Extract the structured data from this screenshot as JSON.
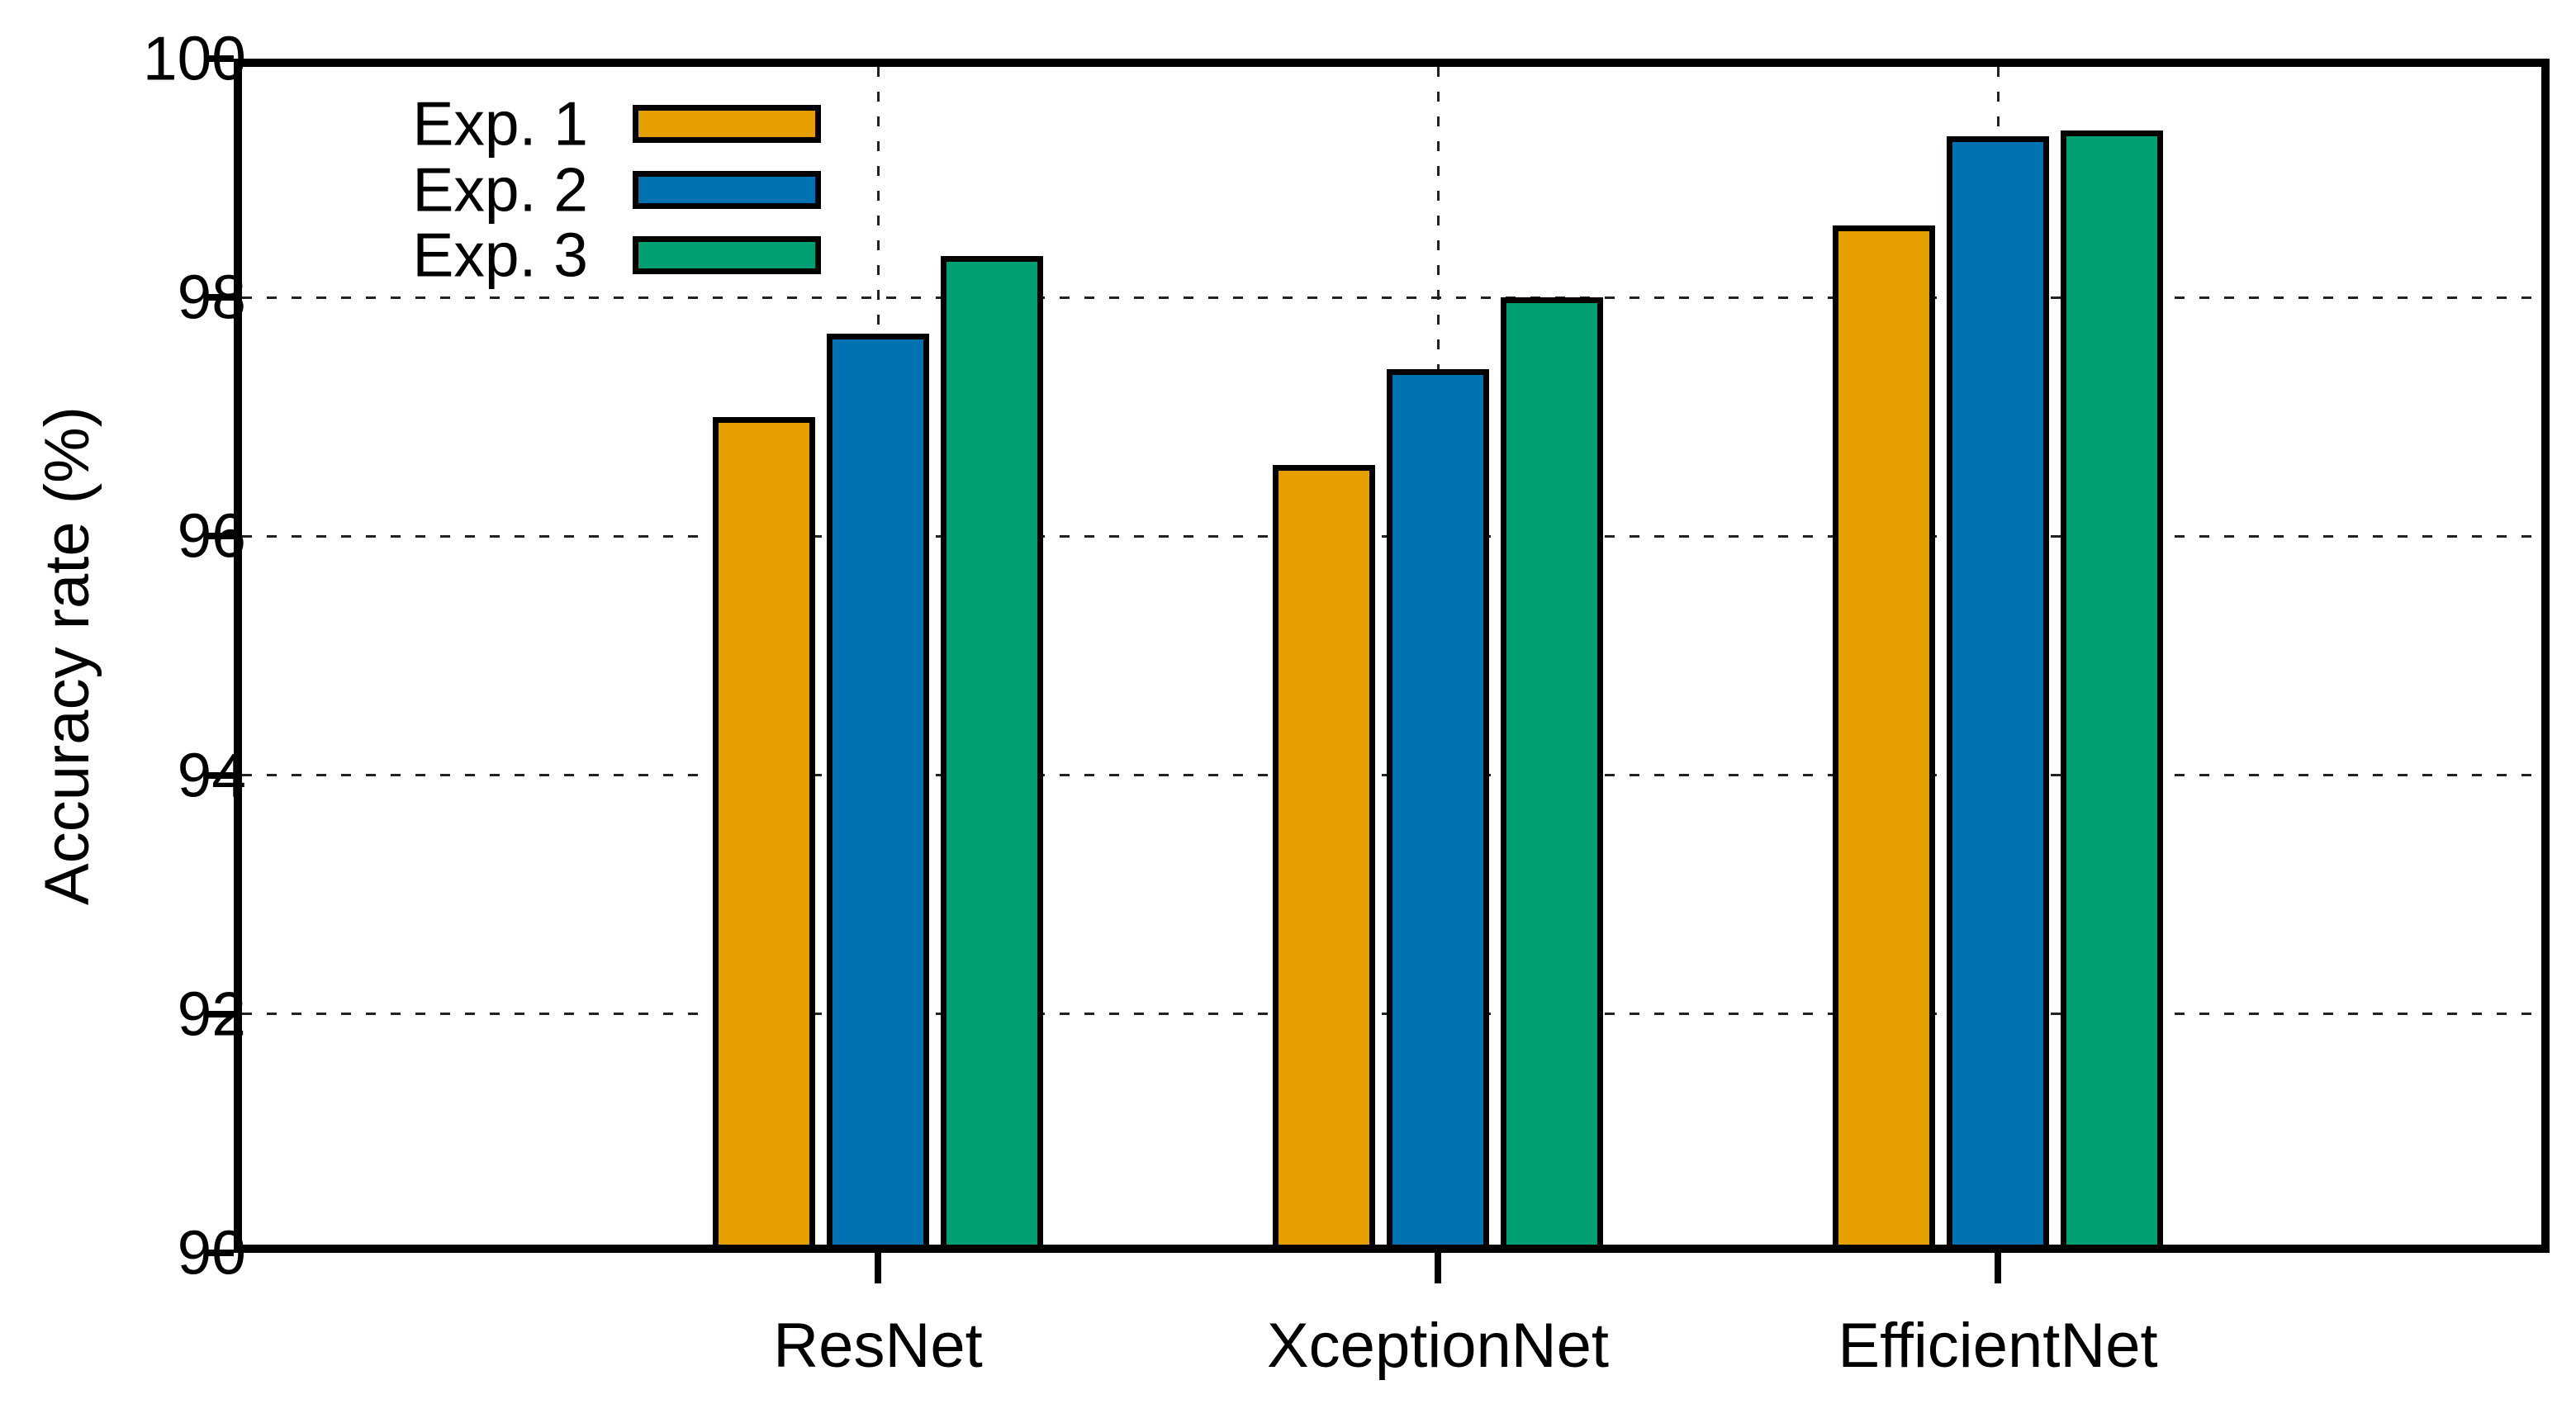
{
  "chart_data": {
    "type": "bar",
    "title": "",
    "ylabel": "Accuracy rate (%)",
    "xlabel": "",
    "categories": [
      "ResNet",
      "XceptionNet",
      "EfficientNet"
    ],
    "series": [
      {
        "name": "Exp. 1",
        "color": "#E69F00",
        "values": [
          97.0,
          96.6,
          98.6
        ]
      },
      {
        "name": "Exp. 2",
        "color": "#0072B2",
        "values": [
          97.7,
          97.4,
          99.35
        ]
      },
      {
        "name": "Exp. 3",
        "color": "#009E73",
        "values": [
          98.35,
          98.0,
          99.4
        ]
      }
    ],
    "ylim": [
      90,
      100
    ],
    "yticks": [
      90,
      92,
      94,
      96,
      98,
      100
    ],
    "grid": {
      "horizontal": true,
      "vertical": true,
      "style": "dashed"
    },
    "legend": {
      "position": "top-left",
      "entries": [
        "Exp. 1",
        "Exp. 2",
        "Exp. 3"
      ]
    }
  },
  "colors": {
    "background": "#ffffff",
    "text": "#000000",
    "axis": "#000000",
    "grid": "#222222",
    "bar_border": "#000000"
  }
}
